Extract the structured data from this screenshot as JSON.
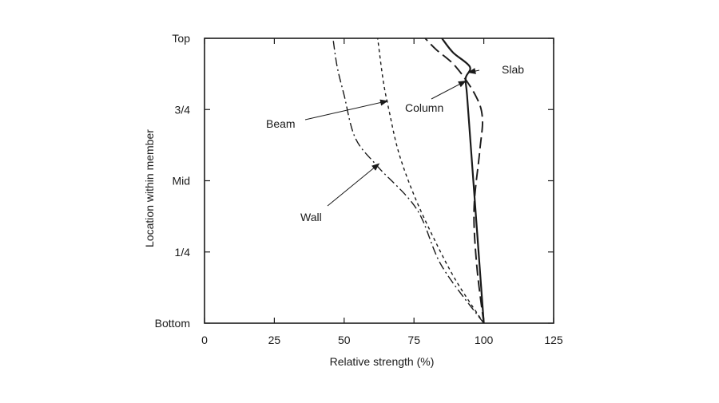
{
  "chart_data": {
    "type": "line",
    "title": "",
    "xlabel": "Relative strength (%)",
    "ylabel": "Location within member",
    "xlim": [
      0,
      125
    ],
    "ylim": [
      0,
      1
    ],
    "x_ticks": [
      0,
      25,
      50,
      75,
      100,
      125
    ],
    "x_tick_labels": [
      "0",
      "25",
      "50",
      "75",
      "100",
      "125"
    ],
    "y_ticks": [
      0,
      0.25,
      0.5,
      0.75,
      1
    ],
    "y_tick_labels": [
      "Bottom",
      "1/4",
      "Mid",
      "3/4",
      "Top"
    ],
    "grid": false,
    "legend": "none",
    "series": [
      {
        "name": "Slab",
        "style": "solid",
        "points": [
          [
            100,
            0
          ],
          [
            98.5,
            0.2
          ],
          [
            97,
            0.4
          ],
          [
            95.5,
            0.6
          ],
          [
            94,
            0.8
          ],
          [
            93.5,
            0.86
          ],
          [
            95,
            0.9
          ],
          [
            89,
            0.95
          ],
          [
            85,
            1.0
          ]
        ]
      },
      {
        "name": "Column",
        "style": "long-dash",
        "points": [
          [
            100,
            0
          ],
          [
            97.5,
            0.2
          ],
          [
            96.5,
            0.4
          ],
          [
            98.5,
            0.6
          ],
          [
            99.5,
            0.72
          ],
          [
            97,
            0.8
          ],
          [
            90,
            0.9
          ],
          [
            83,
            0.96
          ],
          [
            79,
            1.0
          ]
        ]
      },
      {
        "name": "Beam",
        "style": "short-dash",
        "points": [
          [
            100,
            0
          ],
          [
            90,
            0.15
          ],
          [
            82,
            0.3
          ],
          [
            75,
            0.45
          ],
          [
            69.5,
            0.6
          ],
          [
            66,
            0.75
          ],
          [
            64,
            0.85
          ],
          [
            62,
            1.0
          ]
        ]
      },
      {
        "name": "Wall",
        "style": "dash-dot",
        "points": [
          [
            100,
            0
          ],
          [
            85,
            0.2
          ],
          [
            76,
            0.4
          ],
          [
            62,
            0.55
          ],
          [
            54,
            0.65
          ],
          [
            50,
            0.8
          ],
          [
            47.5,
            0.9
          ],
          [
            46,
            1.0
          ]
        ]
      }
    ],
    "annotations": [
      {
        "text": "Slab",
        "points_to": [
          94.5,
          0.88
        ]
      },
      {
        "text": "Column",
        "points_to": [
          93.5,
          0.85
        ]
      },
      {
        "text": "Beam",
        "points_to": [
          65.5,
          0.78
        ]
      },
      {
        "text": "Wall",
        "points_to": [
          62.5,
          0.56
        ]
      }
    ]
  }
}
